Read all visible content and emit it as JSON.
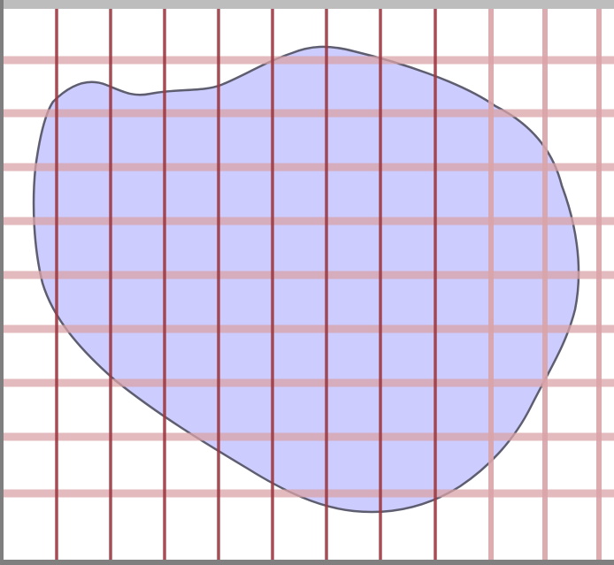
{
  "figure": {
    "description_visible_text": "",
    "colors": {
      "background": "#ffffff",
      "frame": "#7f7f7f",
      "top_bar": "#bdbdbd",
      "blob_fill": "#ccccff",
      "blob_outline": "#5e5e70",
      "grid_line_strong": "#9c3a42",
      "grid_line_light": "#d9a3a7"
    },
    "grid": {
      "vertical_lines_strong": 8,
      "vertical_lines_light": 3,
      "horizontal_lines": 9
    }
  }
}
